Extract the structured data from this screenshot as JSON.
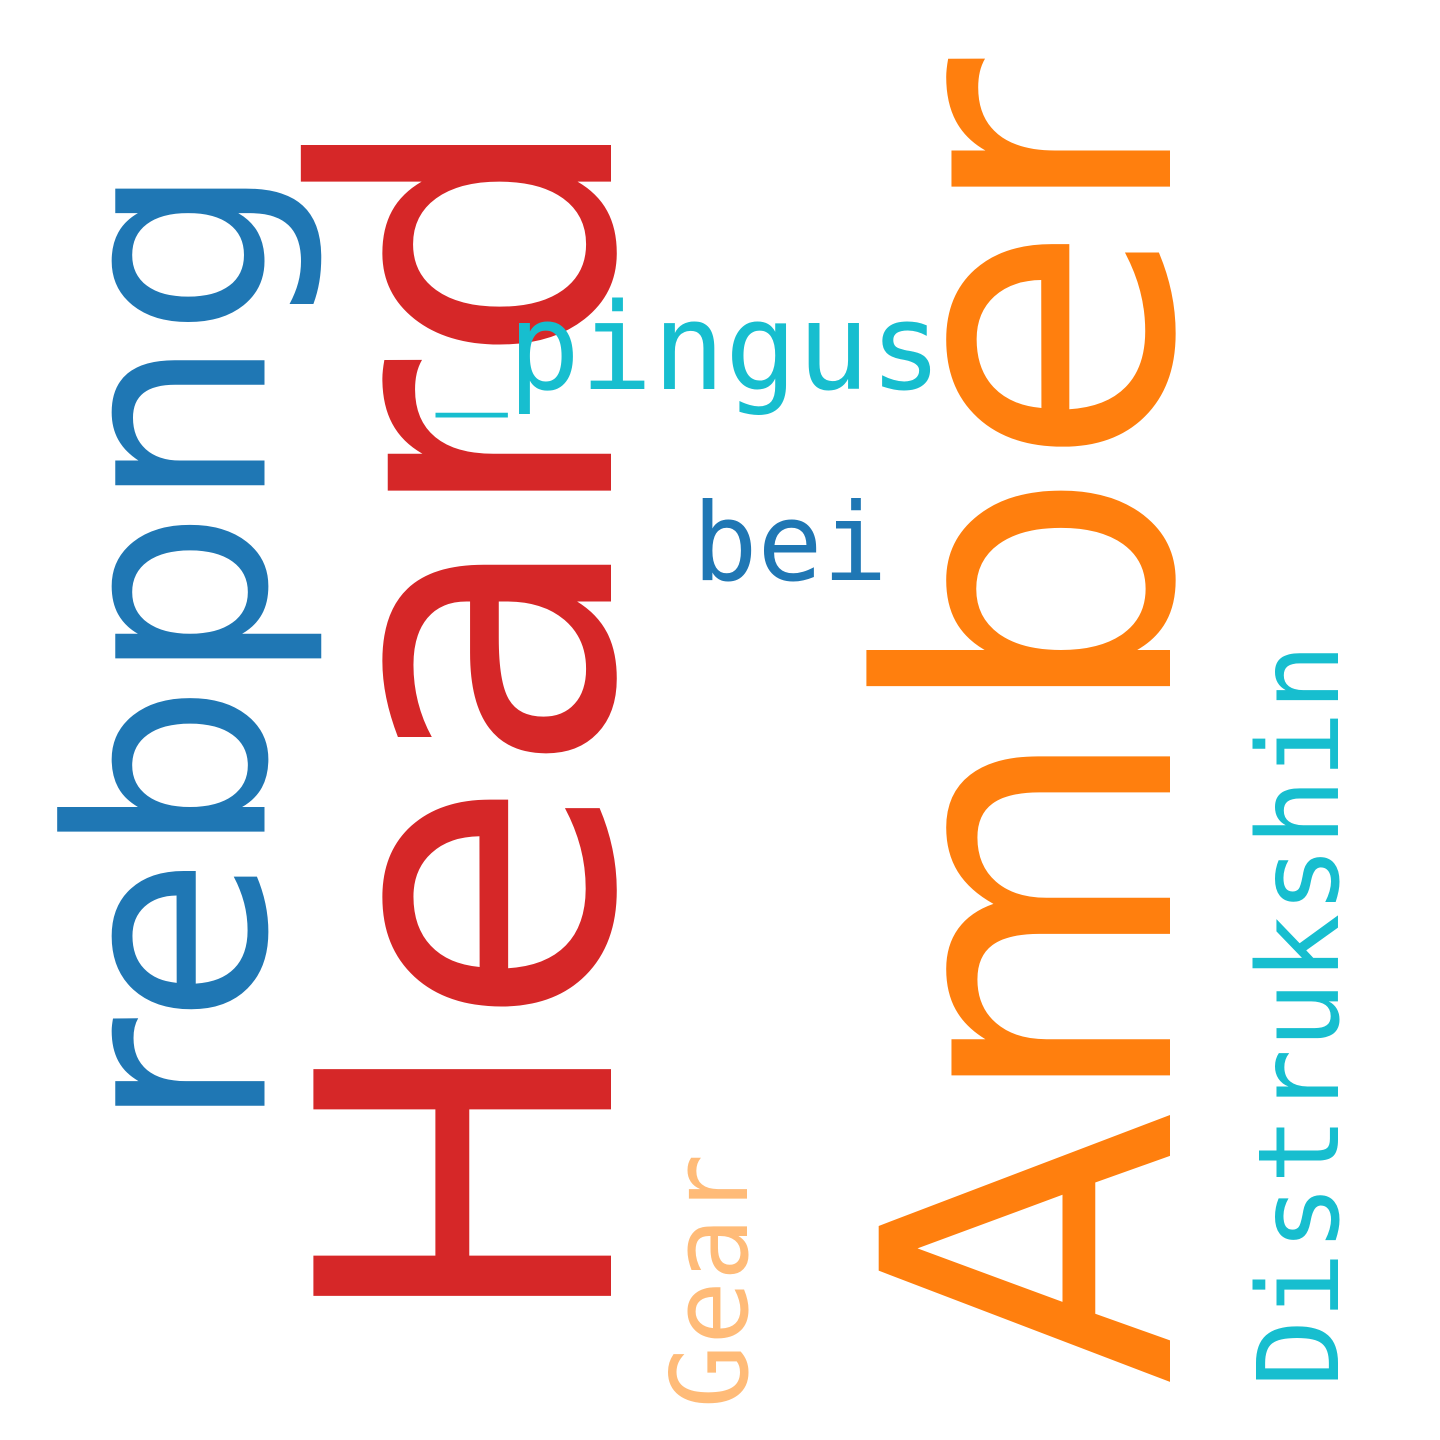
{
  "words": [
    {
      "id": "amber",
      "text": "Amber",
      "color": "#ff7f0e"
    },
    {
      "id": "heard",
      "text": "Heard",
      "color": "#d62728"
    },
    {
      "id": "rebpng",
      "text": "rebpng",
      "color": "#1f77b4"
    },
    {
      "id": "distrukshin",
      "text": "Distrukshin",
      "color": "#17becf"
    },
    {
      "id": "pingus",
      "text": "_pingus",
      "color": "#17becf"
    },
    {
      "id": "bei",
      "text": "bei",
      "color": "#1f77b4"
    },
    {
      "id": "gear",
      "text": "Gear",
      "color": "#ffbb78"
    }
  ]
}
